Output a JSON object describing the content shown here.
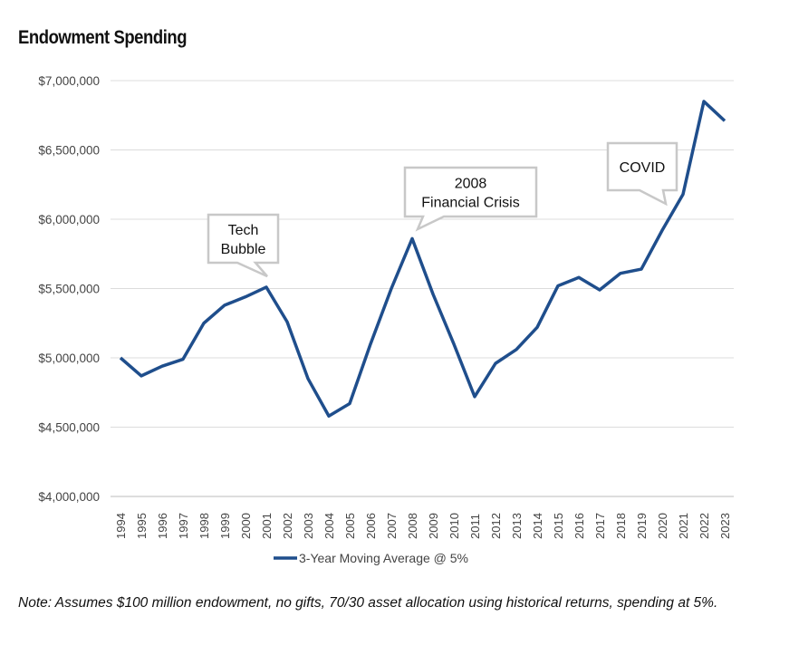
{
  "chart_data": {
    "type": "line",
    "title": "Endowment Spending",
    "categories": [
      "1994",
      "1995",
      "1996",
      "1997",
      "1998",
      "1999",
      "2000",
      "2001",
      "2002",
      "2003",
      "2004",
      "2005",
      "2006",
      "2007",
      "2008",
      "2009",
      "2010",
      "2011",
      "2012",
      "2013",
      "2014",
      "2015",
      "2016",
      "2017",
      "2018",
      "2019",
      "2020",
      "2021",
      "2022",
      "2023"
    ],
    "series": [
      {
        "name": "3-Year Moving Average @ 5%",
        "color": "#1f4e8c",
        "values": [
          5000000,
          4870000,
          4940000,
          4990000,
          5250000,
          5380000,
          5440000,
          5510000,
          5260000,
          4850000,
          4580000,
          4670000,
          5100000,
          5500000,
          5860000,
          5460000,
          5100000,
          4720000,
          4960000,
          5060000,
          5220000,
          5520000,
          5580000,
          5490000,
          5610000,
          5640000,
          5920000,
          6180000,
          6850000,
          6710000
        ]
      }
    ],
    "ylim": [
      4000000,
      7000000
    ],
    "yticks": [
      "$4,000,000",
      "$4,500,000",
      "$5,000,000",
      "$5,500,000",
      "$6,000,000",
      "$6,500,000",
      "$7,000,000"
    ],
    "grid": true,
    "legend": "bottom",
    "annotations": [
      {
        "lines": [
          "Tech",
          "Bubble"
        ],
        "year": "2001"
      },
      {
        "lines": [
          "2008",
          "Financial Crisis"
        ],
        "year": "2008"
      },
      {
        "lines": [
          "COVID"
        ],
        "year": "2020"
      }
    ]
  },
  "note": "Note: Assumes $100 million endowment, no gifts, 70/30 asset allocation using historical returns, spending at 5%."
}
